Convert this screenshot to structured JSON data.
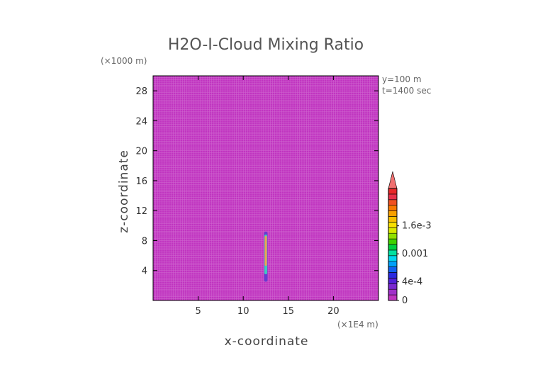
{
  "chart_data": {
    "type": "heatmap",
    "title": "H2O-I-Cloud Mixing Ratio",
    "xlabel": "x-coordinate",
    "ylabel": "z-coordinate",
    "x_unit": "(×1E4 m)",
    "y_unit": "(×1000 m)",
    "annotations": [
      "y=100 m",
      "t=1400 sec"
    ],
    "xlim": [
      0,
      25
    ],
    "ylim": [
      0,
      30
    ],
    "x_ticks": [
      5,
      10,
      15,
      20
    ],
    "y_ticks": [
      4,
      8,
      12,
      16,
      20,
      24,
      28
    ],
    "x_tick_labels": [
      "5",
      "10",
      "15",
      "20"
    ],
    "y_tick_labels": [
      "4",
      "8",
      "12",
      "16",
      "20",
      "24",
      "28"
    ],
    "background_value": 0,
    "grid": true,
    "cloud_column": {
      "x_center": 12.5,
      "z_range": [
        2.5,
        9.2
      ],
      "core_z_range": [
        3.5,
        8.8
      ]
    },
    "colorbar": {
      "min": 0,
      "max": 0.0024,
      "levels": 20,
      "extend": "max",
      "colors": [
        "#c034c0",
        "#a030c8",
        "#7a28d0",
        "#5020d8",
        "#2a2ae0",
        "#1060f0",
        "#00a0f8",
        "#00d8f0",
        "#00e0a0",
        "#00d040",
        "#40d000",
        "#90e000",
        "#d8e800",
        "#f8e000",
        "#f8c000",
        "#f8a000",
        "#f87800",
        "#f05020",
        "#e83048",
        "#e82828"
      ],
      "extend_color": "#f07070",
      "labels": [
        {
          "value": 0,
          "text": "0"
        },
        {
          "value": 0.0004,
          "text": "4e-4"
        },
        {
          "value": 0.001,
          "text": "0.001"
        },
        {
          "value": 0.0016,
          "text": "1.6e-3"
        }
      ]
    },
    "colors": {
      "field": "#c034c0",
      "grid": "#d884d8",
      "frame": "#000000",
      "column_outer": "#6a3ad0",
      "column_mid": "#40c8c0",
      "column_core": "#f0a050"
    }
  }
}
